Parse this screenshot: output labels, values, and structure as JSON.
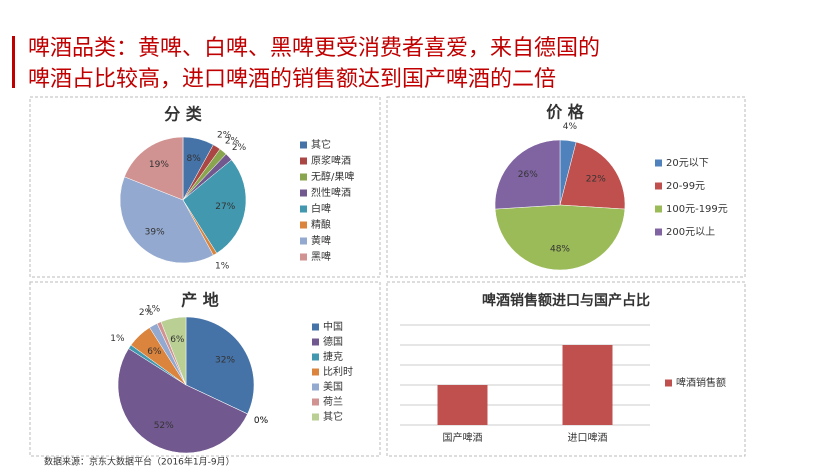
{
  "title_lines": [
    "啤酒品类：黄啤、白啤、黑啤更受消费者喜爱，来自德国的",
    "啤酒占比较高，进口啤酒的销售额达到国产啤酒的二倍"
  ],
  "source": "数据来源：京东大数据平台（2016年1月-9月）",
  "chart_data": [
    {
      "type": "pie",
      "title": "分 类",
      "categories": [
        "其它",
        "原浆啤酒",
        "无醇/果啤",
        "烈性啤酒",
        "白啤",
        "精酿",
        "黄啤",
        "黑啤"
      ],
      "values": [
        8,
        2,
        2,
        2,
        27,
        1,
        39,
        19
      ],
      "value_labels": [
        "8%",
        "2%",
        "2%",
        "2%",
        "27%",
        "1%",
        "39%",
        "19%"
      ],
      "colors": [
        "#4572a7",
        "#aa4643",
        "#89a54e",
        "#71588f",
        "#4198af",
        "#db843d",
        "#93a9cf",
        "#d19392"
      ]
    },
    {
      "type": "pie",
      "title": "价 格",
      "categories": [
        "20元以下",
        "20-99元",
        "100元-199元",
        "200元以上"
      ],
      "values": [
        4,
        22,
        48,
        26
      ],
      "value_labels": [
        "4%",
        "22%",
        "48%",
        "26%"
      ],
      "colors": [
        "#4f81bd",
        "#c0504d",
        "#9bbb59",
        "#8064a2"
      ]
    },
    {
      "type": "pie",
      "title": "产 地",
      "categories": [
        "中国",
        null,
        null,
        "德国",
        "捷克",
        "比利时",
        "美国",
        "荷兰",
        "其它"
      ],
      "values": [
        32,
        0,
        0,
        52,
        1,
        6,
        2,
        1,
        6
      ],
      "value_labels": [
        "32%",
        "0%",
        "0%",
        "52%",
        "1%",
        "6%",
        "2%",
        "1%",
        "6%"
      ],
      "colors": [
        "#4572a7",
        "#aa4643",
        "#89a54e",
        "#71588f",
        "#4198af",
        "#db843d",
        "#93a9cf",
        "#d19392",
        "#b9cf94"
      ]
    },
    {
      "type": "bar",
      "title": "啤酒销售额进口与国产占比",
      "categories": [
        "国产啤酒",
        "进口啤酒"
      ],
      "series": [
        {
          "name": "啤酒销售额",
          "color": "#c0504d",
          "values": [
            1,
            2
          ]
        }
      ],
      "ylim": [
        0,
        2.5
      ],
      "yticks": [
        0,
        0.5,
        1,
        1.5,
        2,
        2.5
      ],
      "grid": true
    }
  ]
}
